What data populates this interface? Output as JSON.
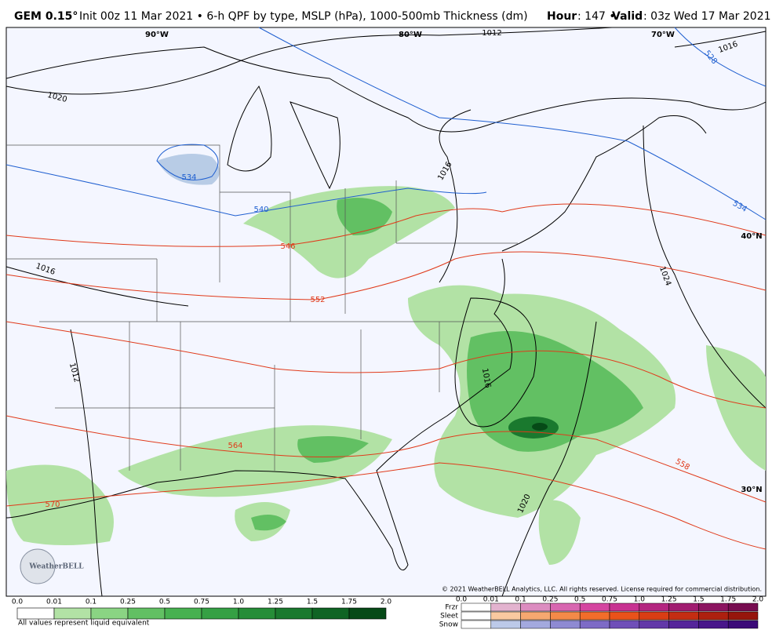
{
  "header": {
    "model": "GEM 0.15°",
    "description": "Init 00z 11 Mar 2021 • 6-h QPF by type, MSLP (hPa), 1000-500mb Thickness (dm)",
    "hour_label": "Hour",
    "hour": ": 147 •",
    "valid_label": "Valid",
    "valid": ": 03z Wed 17 Mar 2021"
  },
  "map": {
    "lon_labels": [
      "90°W",
      "80°W",
      "70°W"
    ],
    "lat_labels": [
      "40°N",
      "30°N"
    ],
    "isobar_labels": [
      "1012",
      "1016",
      "1020",
      "1016",
      "1016",
      "1012",
      "1024",
      "1016",
      "1020"
    ],
    "thickness_labels": [
      "534",
      "540",
      "528",
      "534",
      "546",
      "552",
      "564",
      "570",
      "558"
    ],
    "logo": "WeatherBELL",
    "copyright": "© 2021 WeatherBELL Analytics, LLC. All rights reserved. License required for commercial distribution."
  },
  "legend": {
    "rain_ticks": [
      "0.0",
      "0.01",
      "0.1",
      "0.25",
      "0.5",
      "0.75",
      "1.0",
      "1.25",
      "1.5",
      "1.75",
      "2.0"
    ],
    "rain_colors": [
      "#ffffff",
      "#b2e2a5",
      "#8ad483",
      "#62c063",
      "#47b150",
      "#35a044",
      "#268d38",
      "#1a792e",
      "#0f6424",
      "#064a17"
    ],
    "note": "All values represent liquid equivalent",
    "types": [
      "Frzr",
      "Sleet",
      "Snow"
    ],
    "type_ticks": [
      "0.0",
      "0.01",
      "0.1",
      "0.25",
      "0.5",
      "0.75",
      "1.0",
      "1.25",
      "1.5",
      "1.75",
      "2.0"
    ],
    "type_colors": [
      [
        "#ffffff",
        "#e3b3cf",
        "#dc8cc0",
        "#d866b0",
        "#d545a0",
        "#c83291",
        "#b42680",
        "#a11c70",
        "#8c1460",
        "#770c50"
      ],
      [
        "#ffffff",
        "#f9c9a0",
        "#f6a870",
        "#f48a48",
        "#f26d2a",
        "#e9521a",
        "#d93d14",
        "#c42d12",
        "#ad200f",
        "#96150c"
      ],
      [
        "#ffffff",
        "#bcc9e8",
        "#a3a9de",
        "#8e8ad2",
        "#7d6bc6",
        "#6f4fb8",
        "#6238a8",
        "#55259a",
        "#48168a",
        "#3b0a78"
      ]
    ]
  }
}
